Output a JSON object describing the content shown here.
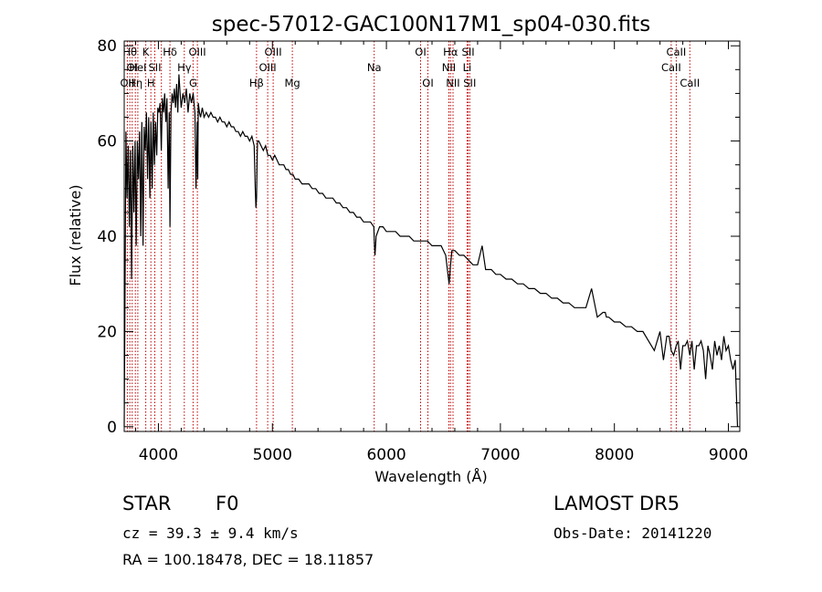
{
  "chart_data": {
    "type": "line",
    "title": "spec-57012-GAC100N17M1_sp04-030.fits",
    "xlabel": "Wavelength (Å)",
    "ylabel": "Flux (relative)",
    "xlim": [
      3700,
      9100
    ],
    "ylim": [
      -1,
      81
    ],
    "x_ticks": [
      4000,
      5000,
      6000,
      7000,
      8000,
      9000
    ],
    "x_tick_labels": [
      "4000",
      "5000",
      "6000",
      "7000",
      "8000",
      "9000"
    ],
    "y_ticks": [
      0,
      20,
      40,
      60,
      80
    ],
    "y_tick_labels": [
      "0",
      "20",
      "40",
      "60",
      "80"
    ],
    "series": [
      {
        "x": [
          3700,
          3715,
          3725,
          3735,
          3745,
          3755,
          3765,
          3775,
          3785,
          3795,
          3805,
          3815,
          3825,
          3835,
          3845,
          3855,
          3865,
          3875,
          3885,
          3895,
          3905,
          3915,
          3925,
          3935,
          3945,
          3955,
          3965,
          3975,
          3985,
          3995,
          4005,
          4015,
          4025,
          4035,
          4045,
          4055,
          4065,
          4075,
          4085,
          4095,
          4101,
          4110,
          4120,
          4130,
          4140,
          4150,
          4160,
          4170,
          4180,
          4190,
          4200,
          4215,
          4230,
          4245,
          4260,
          4275,
          4290,
          4305,
          4320,
          4330,
          4340,
          4345,
          4350,
          4360,
          4370,
          4385,
          4400,
          4420,
          4440,
          4460,
          4480,
          4500,
          4520,
          4540,
          4560,
          4580,
          4600,
          4620,
          4640,
          4660,
          4680,
          4700,
          4720,
          4740,
          4760,
          4780,
          4800,
          4820,
          4840,
          4850,
          4855,
          4861,
          4866,
          4870,
          4880,
          4900,
          4920,
          4940,
          4960,
          4980,
          5000,
          5020,
          5040,
          5060,
          5080,
          5100,
          5120,
          5140,
          5160,
          5180,
          5200,
          5230,
          5260,
          5290,
          5320,
          5350,
          5380,
          5410,
          5440,
          5470,
          5500,
          5530,
          5560,
          5590,
          5620,
          5650,
          5680,
          5710,
          5740,
          5770,
          5800,
          5830,
          5860,
          5890,
          5895,
          5900,
          5910,
          5940,
          5970,
          6000,
          6040,
          6080,
          6120,
          6160,
          6200,
          6240,
          6280,
          6320,
          6360,
          6400,
          6440,
          6480,
          6520,
          6550,
          6563,
          6575,
          6600,
          6640,
          6680,
          6720,
          6760,
          6800,
          6840,
          6870,
          6880,
          6890,
          6920,
          6960,
          7000,
          7050,
          7100,
          7150,
          7200,
          7250,
          7300,
          7350,
          7400,
          7450,
          7500,
          7550,
          7600,
          7650,
          7700,
          7750,
          7800,
          7850,
          7900,
          7920,
          7930,
          7950,
          8000,
          8050,
          8100,
          8150,
          8200,
          8250,
          8300,
          8350,
          8400,
          8430,
          8460,
          8480,
          8498,
          8520,
          8542,
          8560,
          8580,
          8600,
          8620,
          8640,
          8662,
          8680,
          8700,
          8720,
          8740,
          8760,
          8780,
          8800,
          8820,
          8840,
          8860,
          8880,
          8900,
          8920,
          8940,
          8960,
          8980,
          9000,
          9020,
          9040,
          9060,
          9080
        ],
        "y": [
          0,
          62,
          48,
          59,
          42,
          58,
          31,
          59,
          45,
          60,
          38,
          60,
          52,
          62,
          40,
          64,
          38,
          63,
          58,
          66,
          52,
          65,
          48,
          64,
          50,
          66,
          55,
          64,
          57,
          67,
          66,
          68,
          58,
          69,
          66,
          70,
          64,
          69,
          50,
          66,
          42,
          66,
          70,
          68,
          71,
          67,
          72,
          66,
          74,
          70,
          67,
          70,
          68,
          71,
          66,
          70,
          68,
          70,
          66,
          50,
          64,
          52,
          68,
          66,
          65,
          67,
          65,
          66,
          65,
          66,
          65,
          65,
          64,
          65,
          64,
          64,
          63,
          64,
          63,
          63,
          62,
          62,
          61,
          62,
          61,
          61,
          60,
          61,
          59,
          50,
          46,
          48,
          56,
          60,
          60,
          59,
          58,
          59,
          57,
          57,
          56,
          57,
          56,
          55,
          55,
          55,
          54,
          54,
          53,
          53,
          52,
          52,
          51,
          51,
          51,
          50,
          50,
          49,
          49,
          48,
          48,
          48,
          47,
          47,
          46,
          46,
          45,
          45,
          44,
          44,
          43,
          43,
          43,
          42,
          38,
          36,
          40,
          42,
          42,
          41,
          41,
          41,
          40,
          40,
          40,
          39,
          39,
          39,
          39,
          38,
          38,
          38,
          36,
          30,
          34,
          37,
          37,
          36,
          36,
          35,
          34,
          34,
          38,
          33,
          33,
          33,
          33,
          32,
          32,
          31,
          31,
          30,
          30,
          29,
          29,
          28,
          28,
          27,
          27,
          26,
          26,
          25,
          25,
          25,
          29,
          23,
          24,
          24,
          23,
          23,
          22,
          22,
          21,
          21,
          20,
          20,
          18,
          16,
          20,
          14,
          19,
          19,
          16,
          15,
          17,
          18,
          12,
          17,
          17,
          18,
          15,
          18,
          12,
          17,
          17,
          18,
          16,
          10,
          17,
          15,
          12,
          18,
          15,
          17,
          14,
          19,
          16,
          17,
          14,
          12,
          14,
          0
        ]
      }
    ],
    "line_labels": [
      {
        "wl": 3727,
        "text": "OII",
        "row": 3
      },
      {
        "wl": 3750,
        "text": "Hθ",
        "row": 1
      },
      {
        "wl": 3770,
        "text": "OI",
        "row": 2
      },
      {
        "wl": 3798,
        "text": "Hη",
        "row": 3
      },
      {
        "wl": 3819,
        "text": "HeI",
        "row": 2
      },
      {
        "wl": 3889,
        "text": "K",
        "row": 1
      },
      {
        "wl": 3934,
        "text": "H",
        "row": 3
      },
      {
        "wl": 3968,
        "text": "SII",
        "row": 2
      },
      {
        "wl": 4101,
        "text": "Hδ",
        "row": 1
      },
      {
        "wl": 4227,
        "text": "Hγ",
        "row": 2
      },
      {
        "wl": 4304,
        "text": "G",
        "row": 3
      },
      {
        "wl": 4342,
        "text": "OIII",
        "row": 1
      },
      {
        "wl": 4861,
        "text": "Hβ",
        "row": 3
      },
      {
        "wl": 4959,
        "text": "OIII",
        "row": 2
      },
      {
        "wl": 5007,
        "text": "OIII",
        "row": 1
      },
      {
        "wl": 5175,
        "text": "Mg",
        "row": 3
      },
      {
        "wl": 5893,
        "text": "Na",
        "row": 2
      },
      {
        "wl": 6300,
        "text": "OI",
        "row": 1
      },
      {
        "wl": 6364,
        "text": "OI",
        "row": 3
      },
      {
        "wl": 6548,
        "text": "NII",
        "row": 2
      },
      {
        "wl": 6563,
        "text": "Hα",
        "row": 1
      },
      {
        "wl": 6584,
        "text": "NII",
        "row": 3
      },
      {
        "wl": 6708,
        "text": "Li",
        "row": 2
      },
      {
        "wl": 6717,
        "text": "SII",
        "row": 1
      },
      {
        "wl": 6731,
        "text": "SII",
        "row": 3
      },
      {
        "wl": 8498,
        "text": "CaII",
        "row": 2
      },
      {
        "wl": 8542,
        "text": "CaII",
        "row": 1
      },
      {
        "wl": 8662,
        "text": "CaII",
        "row": 3
      }
    ],
    "line_markers": [
      3727,
      3750,
      3770,
      3798,
      3819,
      3889,
      3934,
      3968,
      4026,
      4101,
      4227,
      4304,
      4342,
      4861,
      4959,
      5007,
      5175,
      5893,
      6300,
      6364,
      6548,
      6563,
      6584,
      6708,
      6717,
      6731,
      8498,
      8542,
      8662
    ]
  },
  "info": {
    "class": "STAR",
    "subclass": "F0",
    "redshift": "cz = 39.3 ± 9.4 km/s",
    "coords": "RA = 100.18478, DEC =  18.11857",
    "survey": "LAMOST DR5",
    "obs_date": "Obs-Date: 20141220"
  },
  "colors": {
    "line_marker": "#c00000",
    "spectrum": "#000000",
    "axes": "#000000"
  }
}
